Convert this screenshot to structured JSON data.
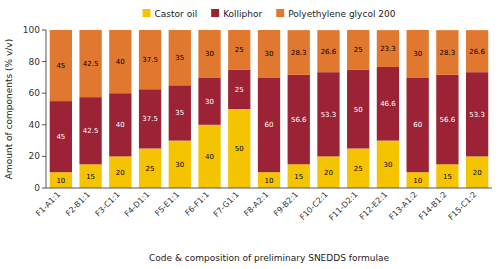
{
  "chart_data": {
    "type": "bar",
    "stacked": true,
    "data_labels": true,
    "grid": false,
    "legend": "top",
    "x_label": "Code & composition of preliminary  SNEDDS formulae",
    "y_label": "Amount of components (% v/v)",
    "categories": [
      "F1-A1:1",
      "F2-B1:1",
      "F3-C1:1",
      "F4-D1:1",
      "F5-E1:1",
      "F6-F1:1",
      "F7-G1:1",
      "F8-A2:1",
      "F9-B2:1",
      "F10-C2:1",
      "F11-D2:1",
      "F12-E2:1",
      "F13-A1:2",
      "F14-B1:2",
      "F15-C1:2"
    ],
    "series": [
      {
        "name": "Castor oil",
        "color": "#F5C400",
        "values": [
          10,
          15,
          20,
          25,
          30,
          40,
          50,
          10,
          15,
          20,
          25,
          30,
          10,
          15,
          20
        ]
      },
      {
        "name": "Kolliphor",
        "color": "#9B2335",
        "values": [
          45,
          42.5,
          40,
          37.5,
          35,
          30,
          25,
          60,
          56.6,
          53.3,
          50,
          46.6,
          60,
          56.6,
          53.3
        ]
      },
      {
        "name": "Polyethylene glycol 200",
        "color": "#E07830",
        "values": [
          45,
          42.5,
          40,
          37.5,
          35,
          30,
          25,
          30,
          28.3,
          26.6,
          25,
          23.3,
          30,
          28.3,
          26.6
        ]
      }
    ],
    "ylim": [
      0,
      100
    ],
    "yticks": [
      0,
      20,
      40,
      60,
      80,
      100
    ]
  }
}
